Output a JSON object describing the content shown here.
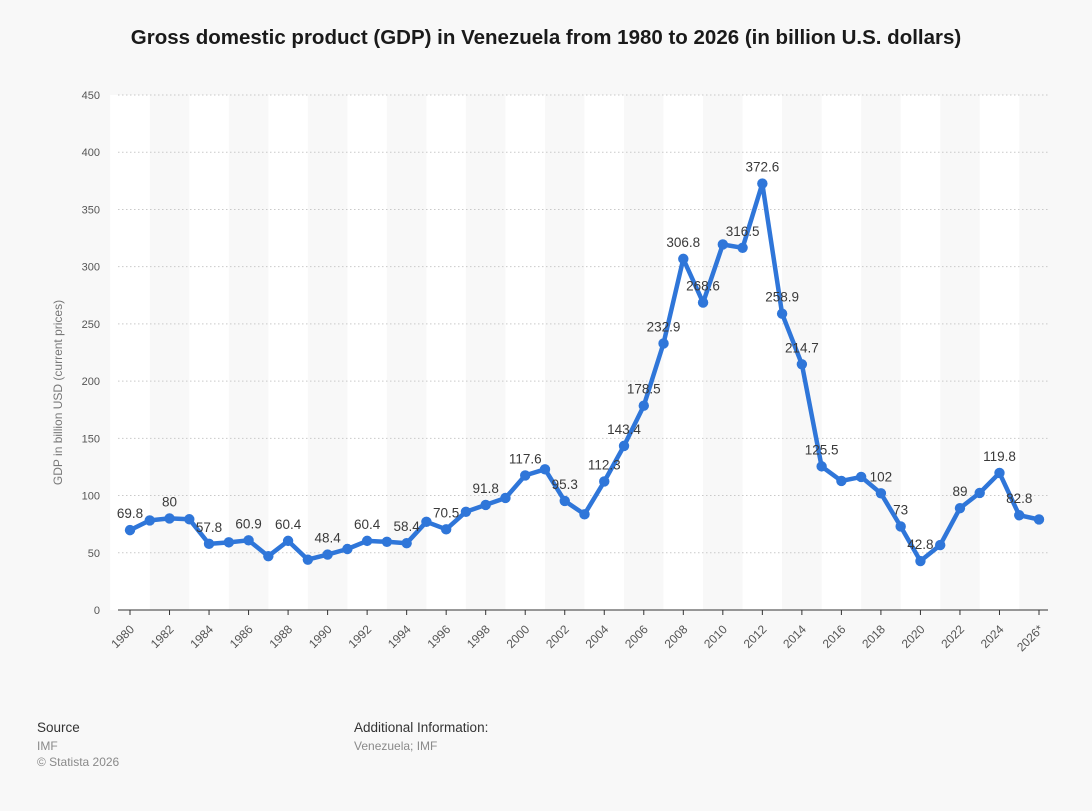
{
  "chart_data": {
    "type": "line",
    "title": "Gross domestic product (GDP) in Venezuela from 1980 to 2026 (in billion U.S. dollars)",
    "xlabel": "",
    "ylabel": "GDP in billion USD (current prices)",
    "ylim": [
      0,
      450
    ],
    "yticks": [
      "0",
      "50",
      "100",
      "150",
      "200",
      "250",
      "300",
      "350",
      "400",
      "450"
    ],
    "grid": true,
    "categories": [
      "1980",
      "1981",
      "1982",
      "1983",
      "1984",
      "1985",
      "1986",
      "1987",
      "1988",
      "1989",
      "1990",
      "1991",
      "1992",
      "1993",
      "1994",
      "1995",
      "1996",
      "1997",
      "1998",
      "1999",
      "2000",
      "2001",
      "2002",
      "2003",
      "2004",
      "2005",
      "2006",
      "2007",
      "2008",
      "2009",
      "2010",
      "2011",
      "2012",
      "2013",
      "2014",
      "2015",
      "2016",
      "2017",
      "2018",
      "2019",
      "2020",
      "2021",
      "2022",
      "2023",
      "2024",
      "2025",
      "2026*"
    ],
    "xtick_labels": [
      "1980",
      "1982",
      "1984",
      "1986",
      "1988",
      "1990",
      "1992",
      "1994",
      "1996",
      "1998",
      "2000",
      "2002",
      "2004",
      "2006",
      "2008",
      "2010",
      "2012",
      "2014",
      "2016",
      "2018",
      "2020",
      "2022",
      "2024",
      "2026*"
    ],
    "series": [
      {
        "name": "GDP",
        "color": "#2f76d9",
        "values": [
          69.8,
          78.3,
          80,
          79.3,
          57.8,
          59.1,
          60.9,
          47,
          60.4,
          44,
          48.4,
          53.3,
          60.4,
          59.6,
          58.4,
          77.1,
          70.5,
          85.8,
          91.8,
          97.9,
          117.6,
          122.9,
          95.3,
          83.6,
          112.3,
          143.4,
          178.5,
          232.9,
          306.8,
          268.6,
          319.4,
          316.5,
          372.6,
          258.9,
          214.7,
          125.5,
          112.8,
          116.3,
          102,
          73,
          42.8,
          56.7,
          89,
          102.3,
          119.8,
          82.8,
          79.1
        ]
      }
    ],
    "data_labels": [
      {
        "index": 0,
        "text": "69.8"
      },
      {
        "index": 2,
        "text": "80"
      },
      {
        "index": 4,
        "text": "57.8"
      },
      {
        "index": 6,
        "text": "60.9"
      },
      {
        "index": 8,
        "text": "60.4"
      },
      {
        "index": 10,
        "text": "48.4"
      },
      {
        "index": 12,
        "text": "60.4"
      },
      {
        "index": 14,
        "text": "58.4"
      },
      {
        "index": 16,
        "text": "70.5"
      },
      {
        "index": 18,
        "text": "91.8"
      },
      {
        "index": 20,
        "text": "117.6"
      },
      {
        "index": 22,
        "text": "95.3"
      },
      {
        "index": 24,
        "text": "112.3"
      },
      {
        "index": 25,
        "text": "143.4"
      },
      {
        "index": 26,
        "text": "178.5"
      },
      {
        "index": 27,
        "text": "232.9"
      },
      {
        "index": 28,
        "text": "306.8"
      },
      {
        "index": 29,
        "text": "268.6"
      },
      {
        "index": 31,
        "text": "316.5"
      },
      {
        "index": 32,
        "text": "372.6"
      },
      {
        "index": 33,
        "text": "258.9"
      },
      {
        "index": 34,
        "text": "214.7"
      },
      {
        "index": 35,
        "text": "125.5"
      },
      {
        "index": 38,
        "text": "102"
      },
      {
        "index": 39,
        "text": "73"
      },
      {
        "index": 40,
        "text": "42.8"
      },
      {
        "index": 42,
        "text": "89"
      },
      {
        "index": 44,
        "text": "119.8"
      },
      {
        "index": 45,
        "text": "82.8"
      }
    ]
  },
  "footer": {
    "source_heading": "Source",
    "source_lines": [
      "IMF",
      "© Statista 2026"
    ],
    "info_heading": "Additional Information:",
    "info_lines": [
      "Venezuela; IMF"
    ]
  }
}
